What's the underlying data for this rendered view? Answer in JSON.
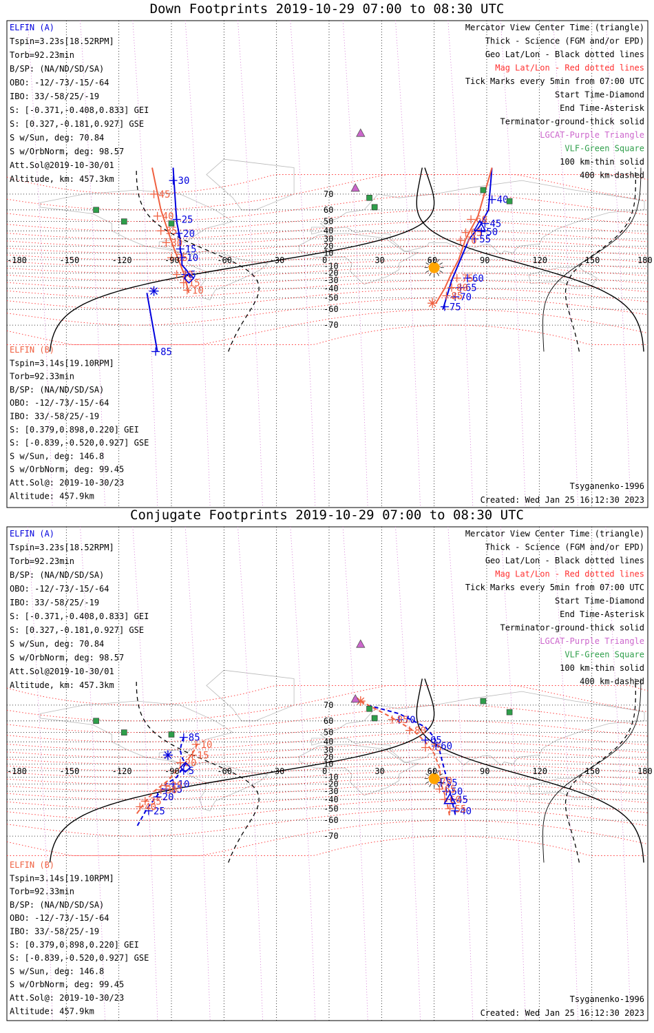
{
  "colors": {
    "elfin_a": "#0000dd",
    "elfin_b": "#f06040",
    "mag_grid": "#ff3030",
    "geo_grid": "#000000",
    "lgcat": "#cc66cc",
    "vlf": "#2e9e4a",
    "terminator": "#000000",
    "sun": "#ffa500",
    "coast": "#b8b8b8"
  },
  "geo_lon_labels": [
    "-180",
    "-150",
    "-120",
    "-90",
    "-60",
    "-30",
    "0",
    "30",
    "60",
    "90",
    "120",
    "150",
    "180"
  ],
  "geo_lat_labels": [
    "70",
    "60",
    "50",
    "40",
    "30",
    "20",
    "10",
    "0",
    "-10",
    "-20",
    "-30",
    "-40",
    "-50",
    "-60",
    "-70"
  ],
  "legend": [
    "Mercator View Center Time (triangle)",
    "Thick - Science (FGM and/or EPD)",
    "Geo Lat/Lon - Black dotted lines",
    "Mag Lat/Lon - Red dotted lines",
    "Tick Marks every 5min from 07:00 UTC",
    "Start Time-Diamond",
    "End Time-Asterisk",
    "Terminator-ground-thick solid",
    "LGCAT-Purple Triangle",
    "VLF-Green Square",
    "100 km-thin solid",
    "400 km-dashed"
  ],
  "elfin_a": {
    "name": "ELFIN (A)",
    "lines": [
      "Tspin=3.23s[18.52RPM]",
      "Torb=92.23min",
      "B/SP: (NA/ND/SD/SA)",
      "OBO: -12/-73/-15/-64",
      "IBO: 33/-58/25/-19",
      "S: [-0.371,-0.408,0.833] GEI",
      "S: [0.327,-0.181,0.927] GSE",
      "S w/Sun, deg: 70.84",
      "S w/OrbNorm, deg: 98.57",
      "Att.Sol@2019-10-30/01",
      "Altitude, km: 457.3km"
    ]
  },
  "elfin_b": {
    "name": "ELFIN (B)",
    "lines": [
      "Tspin=3.14s[19.10RPM]",
      "Torb=92.33min",
      "B/SP: (NA/ND/SD/SA)",
      "OBO: -12/-73/-15/-64",
      "IBO: 33/-58/25/-19",
      "S: [0.379,0.898,0.220] GEI",
      "S: [-0.839,-0.520,0.927] GSE",
      "S w/Sun, deg: 146.8",
      "S w/OrbNorm, deg: 99.45",
      "Att.Sol@: 2019-10-30/23",
      "Altitude: 457.9km"
    ]
  },
  "model": "Tsyganenko-1996",
  "created": "Created: Wed Jan 25 16:12:30 2023",
  "panels": [
    {
      "title": "Down Footprints 2019-10-29 07:00 to 08:30 UTC",
      "a_west": [
        [
          -89,
          80
        ],
        [
          -87,
          50
        ],
        [
          -85,
          30
        ],
        [
          -85,
          15
        ],
        [
          -84,
          5
        ],
        [
          -84,
          -8
        ],
        [
          -81,
          -17
        ],
        [
          -79,
          -27
        ]
      ],
      "a_west_ticks": [
        [
          "30",
          -89,
          76
        ],
        [
          "25",
          -87,
          52
        ],
        [
          "20",
          -86,
          37
        ],
        [
          "15",
          -85,
          16
        ],
        [
          "10",
          -84,
          3
        ],
        [
          "5",
          -82,
          -22
        ]
      ],
      "b_west": [
        [
          -101,
          80
        ],
        [
          -96,
          60
        ],
        [
          -92,
          40
        ],
        [
          -89,
          20
        ],
        [
          -86,
          0
        ],
        [
          -83,
          -20
        ],
        [
          -80,
          -45
        ],
        [
          -79,
          -90
        ]
      ],
      "b_west_ticks": [
        [
          "45",
          -100,
          70
        ],
        [
          "40",
          -98,
          55
        ],
        [
          "35",
          -96,
          40
        ],
        [
          "30",
          -93,
          25
        ],
        [
          "25",
          -90,
          3
        ],
        [
          "20",
          -87,
          -22
        ],
        [
          "15",
          -83,
          -33
        ],
        [
          "10",
          -81,
          -42
        ]
      ],
      "b_tail": [
        [
          -104,
          -45
        ],
        [
          -98,
          -80
        ],
        [
          -95,
          -90
        ]
      ],
      "b_tail_ticks": [
        [
          "85",
          -99,
          -80
        ]
      ],
      "a_east": [
        [
          93,
          80
        ],
        [
          91,
          60
        ],
        [
          86,
          45
        ],
        [
          80,
          30
        ],
        [
          75,
          0
        ],
        [
          70,
          -30
        ],
        [
          65,
          -60
        ],
        [
          62,
          -90
        ]
      ],
      "a_east_ticks": [
        [
          "40",
          93,
          67
        ],
        [
          "45",
          89,
          48
        ],
        [
          "50",
          87,
          39
        ],
        [
          "55",
          83,
          30
        ],
        [
          "60",
          79,
          -27
        ],
        [
          "65",
          75,
          -39
        ],
        [
          "70",
          72,
          -49
        ],
        [
          "75",
          66,
          -58
        ]
      ],
      "b_east": [
        [
          93,
          80
        ],
        [
          85,
          55
        ],
        [
          78,
          30
        ],
        [
          74,
          0
        ],
        [
          70,
          -20
        ],
        [
          66,
          -40
        ],
        [
          61,
          -55
        ]
      ],
      "b_east_ticks": [
        [
          "60",
          81,
          52
        ],
        [
          "65",
          78,
          38
        ],
        [
          "70",
          75,
          28
        ],
        [
          "75",
          73,
          -27
        ],
        [
          "80",
          70,
          -39
        ],
        [
          "85",
          67,
          -48
        ]
      ],
      "start_a": [
        -80,
        -27
      ],
      "end_a": [
        -100,
        -43
      ],
      "end_b": [
        59,
        -55
      ],
      "center_a": [
        86,
        45
      ]
    },
    {
      "title": "Conjugate Footprints 2019-10-29 07:00 to 08:30 UTC",
      "a_west": [
        [
          -83,
          45
        ],
        [
          -84,
          40
        ],
        [
          -85,
          30
        ],
        [
          -84,
          20
        ],
        [
          -82,
          10
        ],
        [
          -87,
          -10
        ],
        [
          -93,
          -20
        ],
        [
          -98,
          -35
        ],
        [
          -104,
          -50
        ],
        [
          -110,
          -65
        ]
      ],
      "a_west_ticks": [
        [
          "85",
          -83,
          45
        ],
        [
          "5",
          -83,
          0
        ],
        [
          "10",
          -89,
          -20
        ],
        [
          "15",
          -93,
          -27
        ],
        [
          "20",
          -98,
          -37
        ],
        [
          "25",
          -103,
          -52
        ]
      ],
      "b_west": [
        [
          -75,
          38
        ],
        [
          -78,
          25
        ],
        [
          -82,
          12
        ],
        [
          -87,
          0
        ],
        [
          -92,
          -15
        ],
        [
          -100,
          -30
        ],
        [
          -105,
          -43
        ],
        [
          -110,
          -55
        ]
      ],
      "b_west_ticks": [
        [
          "10",
          -76,
          37
        ],
        [
          "15",
          -78,
          23
        ],
        [
          "20",
          -85,
          12
        ],
        [
          "25",
          -93,
          -22
        ],
        [
          "30",
          -96,
          -28
        ],
        [
          "35",
          -105,
          -42
        ],
        [
          "40",
          -108,
          -48
        ]
      ],
      "b_tail": [],
      "b_tail_ticks": [],
      "a_east": [
        [
          22,
          70
        ],
        [
          40,
          65
        ],
        [
          55,
          55
        ],
        [
          60,
          45
        ],
        [
          63,
          30
        ],
        [
          65,
          10
        ],
        [
          68,
          -20
        ],
        [
          70,
          -40
        ],
        [
          72,
          -55
        ]
      ],
      "a_east_ticks": [
        [
          "70",
          40,
          61
        ],
        [
          "65",
          55,
          42
        ],
        [
          "60",
          61,
          35
        ],
        [
          "55",
          64,
          -18
        ],
        [
          "50",
          67,
          -30
        ],
        [
          "45",
          70,
          -40
        ],
        [
          "40",
          72,
          -52
        ]
      ],
      "b_east": [
        [
          18,
          72
        ],
        [
          35,
          63
        ],
        [
          48,
          52
        ],
        [
          55,
          40
        ],
        [
          60,
          25
        ],
        [
          63,
          5
        ],
        [
          64,
          -20
        ],
        [
          67,
          -40
        ],
        [
          69,
          -58
        ]
      ],
      "b_east_ticks": [
        [
          "85",
          36,
          61
        ],
        [
          "80",
          46,
          52
        ],
        [
          "75",
          55,
          33
        ],
        [
          "70",
          61,
          -15
        ],
        [
          "65",
          63,
          -27
        ],
        [
          "60",
          66,
          -40
        ],
        [
          "55",
          69,
          -50
        ]
      ],
      "start_a": [
        -82,
        5
      ],
      "end_a": [
        -92,
        23
      ],
      "end_b": [
        18,
        72
      ],
      "center_a": [
        69,
        -40
      ]
    }
  ]
}
